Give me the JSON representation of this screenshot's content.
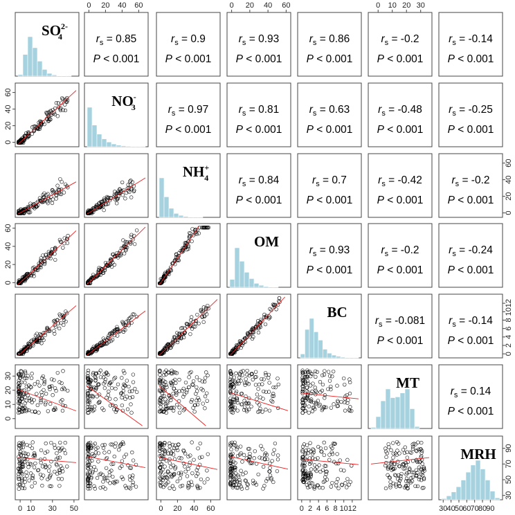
{
  "chart_data": {
    "type": "scatter",
    "variables": [
      {
        "key": "SO4",
        "name": "SO",
        "sub": "4",
        "sup": "2-",
        "ticks": [
          0,
          10,
          30,
          50
        ],
        "range": [
          -2,
          52
        ],
        "ticks_on": "bottom",
        "hist": [
          0.04,
          0.55,
          1.0,
          0.72,
          0.38,
          0.17,
          0.07,
          0.03,
          0.01,
          0.005,
          0.003
        ]
      },
      {
        "key": "NO3",
        "name": "NO",
        "sub": "3",
        "sup": "-",
        "ticks": [
          0,
          20,
          40,
          60
        ],
        "range": [
          -2,
          68
        ],
        "ticks_on": "left-top",
        "hist": [
          1.0,
          0.55,
          0.32,
          0.2,
          0.12,
          0.07,
          0.04,
          0.025,
          0.015,
          0.008,
          0.005,
          0.003
        ]
      },
      {
        "key": "NH4",
        "name": "NH",
        "sub": "4",
        "sup": "+",
        "ticks": [
          0,
          20,
          40,
          60
        ],
        "range": [
          -2,
          68
        ],
        "ticks_on": "right-bottom",
        "hist": [
          1.0,
          0.52,
          0.23,
          0.1,
          0.05,
          0.025,
          0.012,
          0.006,
          0.003
        ]
      },
      {
        "key": "OM",
        "name": "OM",
        "sub": "",
        "sup": "",
        "ticks": [
          0,
          20,
          40,
          60
        ],
        "range": [
          -2,
          62
        ],
        "ticks_on": "left-top",
        "hist": [
          0.2,
          1.0,
          0.66,
          0.38,
          0.22,
          0.1,
          0.05,
          0.02,
          0.01,
          0.005
        ]
      },
      {
        "key": "BC",
        "name": "BC",
        "sub": "",
        "sup": "",
        "ticks": [
          0,
          2,
          4,
          6,
          8,
          10,
          12
        ],
        "range": [
          -0.3,
          13.5
        ],
        "ticks_on": "right-bottom",
        "hist": [
          0.1,
          0.72,
          1.0,
          0.66,
          0.45,
          0.22,
          0.12,
          0.07,
          0.04,
          0.02,
          0.01,
          0.008,
          0.004
        ]
      },
      {
        "key": "MT",
        "name": "MT",
        "sub": "",
        "sup": "",
        "ticks": [
          0,
          10,
          20,
          30
        ],
        "range": [
          -5,
          36
        ],
        "ticks_on": "left-top",
        "hist": [
          0.03,
          0.3,
          0.7,
          1.0,
          0.78,
          0.8,
          0.9,
          1.0,
          0.5,
          0.05
        ]
      },
      {
        "key": "MRH",
        "name": "MRH",
        "sub": "",
        "sup": "",
        "ticks": [
          30,
          50,
          70,
          90
        ],
        "range": [
          28,
          102
        ],
        "ticks_on": "right-bottom",
        "bottom_ticks": [
          30,
          40,
          50,
          60,
          70,
          80,
          90
        ],
        "hist": [
          0.03,
          0.1,
          0.2,
          0.33,
          0.5,
          0.7,
          0.88,
          1.0,
          0.78,
          0.5,
          0.22,
          0.05
        ]
      }
    ],
    "correlations": [
      {
        "row": 0,
        "col": 1,
        "rs": "0.85",
        "p": "< 0.001"
      },
      {
        "row": 0,
        "col": 2,
        "rs": "0.9",
        "p": "< 0.001"
      },
      {
        "row": 0,
        "col": 3,
        "rs": "0.93",
        "p": "< 0.001"
      },
      {
        "row": 0,
        "col": 4,
        "rs": "0.86",
        "p": "< 0.001"
      },
      {
        "row": 0,
        "col": 5,
        "rs": "-0.2",
        "p": "< 0.001"
      },
      {
        "row": 0,
        "col": 6,
        "rs": "-0.14",
        "p": "< 0.001"
      },
      {
        "row": 1,
        "col": 2,
        "rs": "0.97",
        "p": "< 0.001"
      },
      {
        "row": 1,
        "col": 3,
        "rs": "0.81",
        "p": "< 0.001"
      },
      {
        "row": 1,
        "col": 4,
        "rs": "0.63",
        "p": "< 0.001"
      },
      {
        "row": 1,
        "col": 5,
        "rs": "-0.48",
        "p": "< 0.001"
      },
      {
        "row": 1,
        "col": 6,
        "rs": "-0.25",
        "p": "< 0.001"
      },
      {
        "row": 2,
        "col": 3,
        "rs": "0.84",
        "p": "< 0.001"
      },
      {
        "row": 2,
        "col": 4,
        "rs": "0.7",
        "p": "< 0.001"
      },
      {
        "row": 2,
        "col": 5,
        "rs": "-0.42",
        "p": "< 0.001"
      },
      {
        "row": 2,
        "col": 6,
        "rs": "-0.2",
        "p": "< 0.001"
      },
      {
        "row": 3,
        "col": 4,
        "rs": "0.93",
        "p": "< 0.001"
      },
      {
        "row": 3,
        "col": 5,
        "rs": "-0.2",
        "p": "< 0.001"
      },
      {
        "row": 3,
        "col": 6,
        "rs": "-0.24",
        "p": "< 0.001"
      },
      {
        "row": 4,
        "col": 5,
        "rs": "-0.081",
        "p": "< 0.001"
      },
      {
        "row": 4,
        "col": 6,
        "rs": "-0.14",
        "p": "< 0.001"
      },
      {
        "row": 5,
        "col": 6,
        "rs": "0.14",
        "p": "< 0.001"
      }
    ],
    "fit_lines": [
      {
        "row": 1,
        "col": 0,
        "slope": 1.2,
        "intercept": 0
      },
      {
        "row": 2,
        "col": 0,
        "slope": 0.72,
        "intercept": 0
      },
      {
        "row": 2,
        "col": 1,
        "slope": 0.62,
        "intercept": 0
      },
      {
        "row": 3,
        "col": 0,
        "slope": 1.1,
        "intercept": 0
      },
      {
        "row": 3,
        "col": 1,
        "slope": 0.9,
        "intercept": 0
      },
      {
        "row": 3,
        "col": 2,
        "slope": 1.35,
        "intercept": 0
      },
      {
        "row": 4,
        "col": 0,
        "slope": 0.22,
        "intercept": 0
      },
      {
        "row": 4,
        "col": 1,
        "slope": 0.15,
        "intercept": 0
      },
      {
        "row": 4,
        "col": 2,
        "slope": 0.19,
        "intercept": 0
      },
      {
        "row": 4,
        "col": 3,
        "slope": 0.23,
        "intercept": 0
      },
      {
        "row": 5,
        "col": 0,
        "slope": -0.28,
        "intercept": 20
      },
      {
        "row": 5,
        "col": 1,
        "slope": -0.42,
        "intercept": 22
      },
      {
        "row": 5,
        "col": 2,
        "slope": -0.5,
        "intercept": 22
      },
      {
        "row": 5,
        "col": 3,
        "slope": -0.2,
        "intercept": 18
      },
      {
        "row": 5,
        "col": 4,
        "slope": -0.3,
        "intercept": 18
      },
      {
        "row": 6,
        "col": 0,
        "slope": -0.12,
        "intercept": 78
      },
      {
        "row": 6,
        "col": 1,
        "slope": -0.2,
        "intercept": 79
      },
      {
        "row": 6,
        "col": 2,
        "slope": -0.22,
        "intercept": 78
      },
      {
        "row": 6,
        "col": 3,
        "slope": -0.25,
        "intercept": 79
      },
      {
        "row": 6,
        "col": 4,
        "slope": -0.5,
        "intercept": 76
      },
      {
        "row": 6,
        "col": 5,
        "slope": 0.2,
        "intercept": 71
      }
    ],
    "stat_label": "r",
    "stat_sub": "s",
    "p_label": "P",
    "colors": {
      "histogram": "#a6d2e0",
      "fit_line": "#ee1c1c",
      "points": "#000000",
      "border": "#444444"
    },
    "grid": false,
    "legend": "none"
  }
}
